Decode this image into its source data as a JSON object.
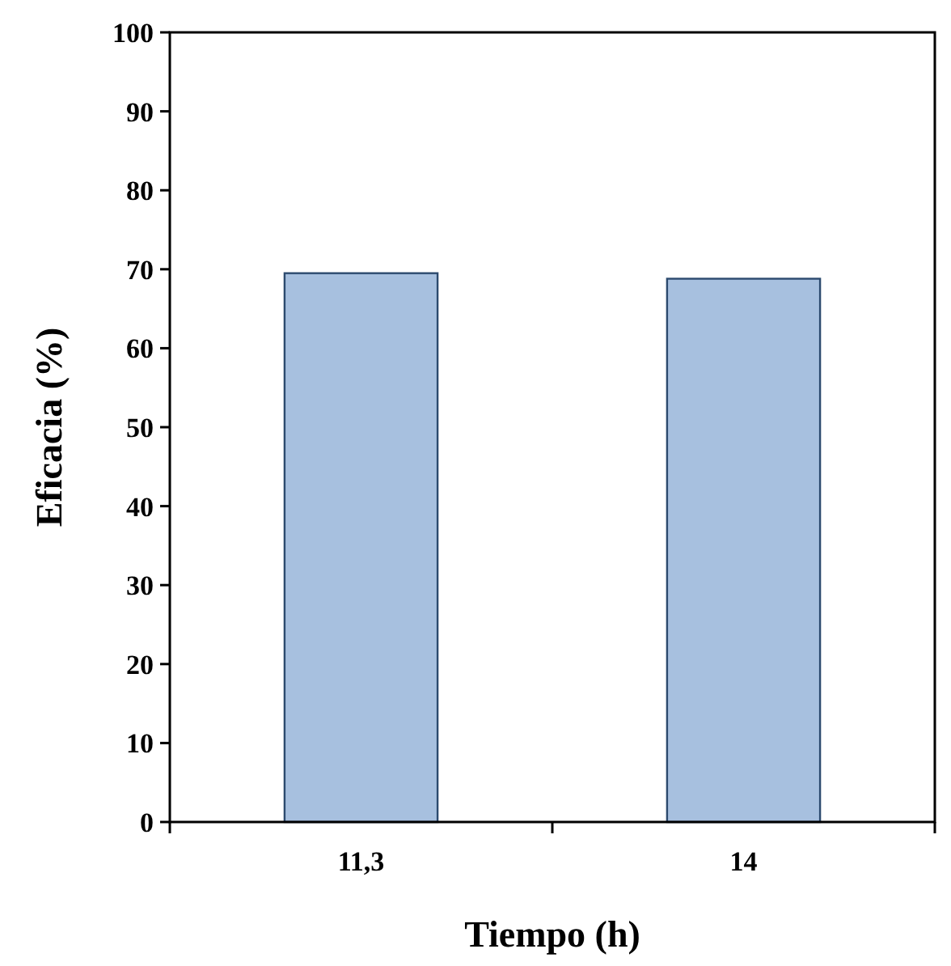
{
  "chart_data": {
    "type": "bar",
    "xlabel": "Tiempo (h)",
    "ylabel": "Eficacia (%)",
    "categories": [
      "11,3",
      "14"
    ],
    "values": [
      69.5,
      68.8
    ],
    "color": "#a7c0df",
    "ylim": [
      0,
      100
    ],
    "yticks": [
      0,
      10,
      20,
      30,
      40,
      50,
      60,
      70,
      80,
      90,
      100
    ]
  }
}
